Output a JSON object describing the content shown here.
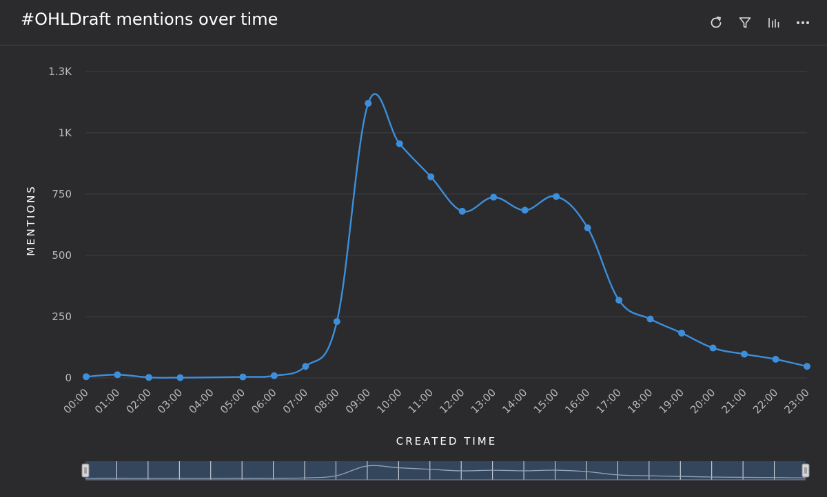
{
  "header": {
    "title": "#OHLDraft mentions over time",
    "toolbar": [
      {
        "name": "refresh-icon"
      },
      {
        "name": "filter-icon"
      },
      {
        "name": "chart-type-icon"
      },
      {
        "name": "more-icon"
      }
    ]
  },
  "colors": {
    "background": "#2b2b2d",
    "series": "#3d8fdb",
    "grid": "#3f3f42",
    "navigator_fill": "#34465c"
  },
  "chart_data": {
    "type": "line",
    "xlabel": "CREATED TIME",
    "ylabel": "MENTIONS",
    "categories": [
      "00:00",
      "01:00",
      "02:00",
      "03:00",
      "04:00",
      "05:00",
      "06:00",
      "07:00",
      "08:00",
      "09:00",
      "10:00",
      "11:00",
      "12:00",
      "13:00",
      "14:00",
      "15:00",
      "16:00",
      "17:00",
      "18:00",
      "19:00",
      "20:00",
      "21:00",
      "22:00",
      "23:00"
    ],
    "series": [
      {
        "points": [
          {
            "x": "00:00",
            "y": 5
          },
          {
            "x": "01:00",
            "y": 13
          },
          {
            "x": "02:00",
            "y": 2
          },
          {
            "x": "03:00",
            "y": 1
          },
          {
            "x": "05:00",
            "y": 4
          },
          {
            "x": "06:00",
            "y": 9
          },
          {
            "x": "07:00",
            "y": 47
          },
          {
            "x": "08:00",
            "y": 230
          },
          {
            "x": "09:00",
            "y": 1120
          },
          {
            "x": "10:00",
            "y": 955
          },
          {
            "x": "11:00",
            "y": 820
          },
          {
            "x": "12:00",
            "y": 680
          },
          {
            "x": "13:00",
            "y": 737
          },
          {
            "x": "14:00",
            "y": 684
          },
          {
            "x": "15:00",
            "y": 740
          },
          {
            "x": "16:00",
            "y": 612
          },
          {
            "x": "17:00",
            "y": 317
          },
          {
            "x": "18:00",
            "y": 240
          },
          {
            "x": "19:00",
            "y": 183
          },
          {
            "x": "20:00",
            "y": 122
          },
          {
            "x": "21:00",
            "y": 97
          },
          {
            "x": "22:00",
            "y": 76
          },
          {
            "x": "23:00",
            "y": 47
          }
        ]
      }
    ],
    "ylim": [
      0,
      1300
    ],
    "yticks": [
      {
        "value": 0,
        "label": "0"
      },
      {
        "value": 250,
        "label": "250"
      },
      {
        "value": 500,
        "label": "500"
      },
      {
        "value": 750,
        "label": "750"
      },
      {
        "value": 1000,
        "label": "1K"
      },
      {
        "value": 1250,
        "label": "1.3K"
      }
    ],
    "grid": true,
    "navigator": true,
    "legend": "none"
  }
}
